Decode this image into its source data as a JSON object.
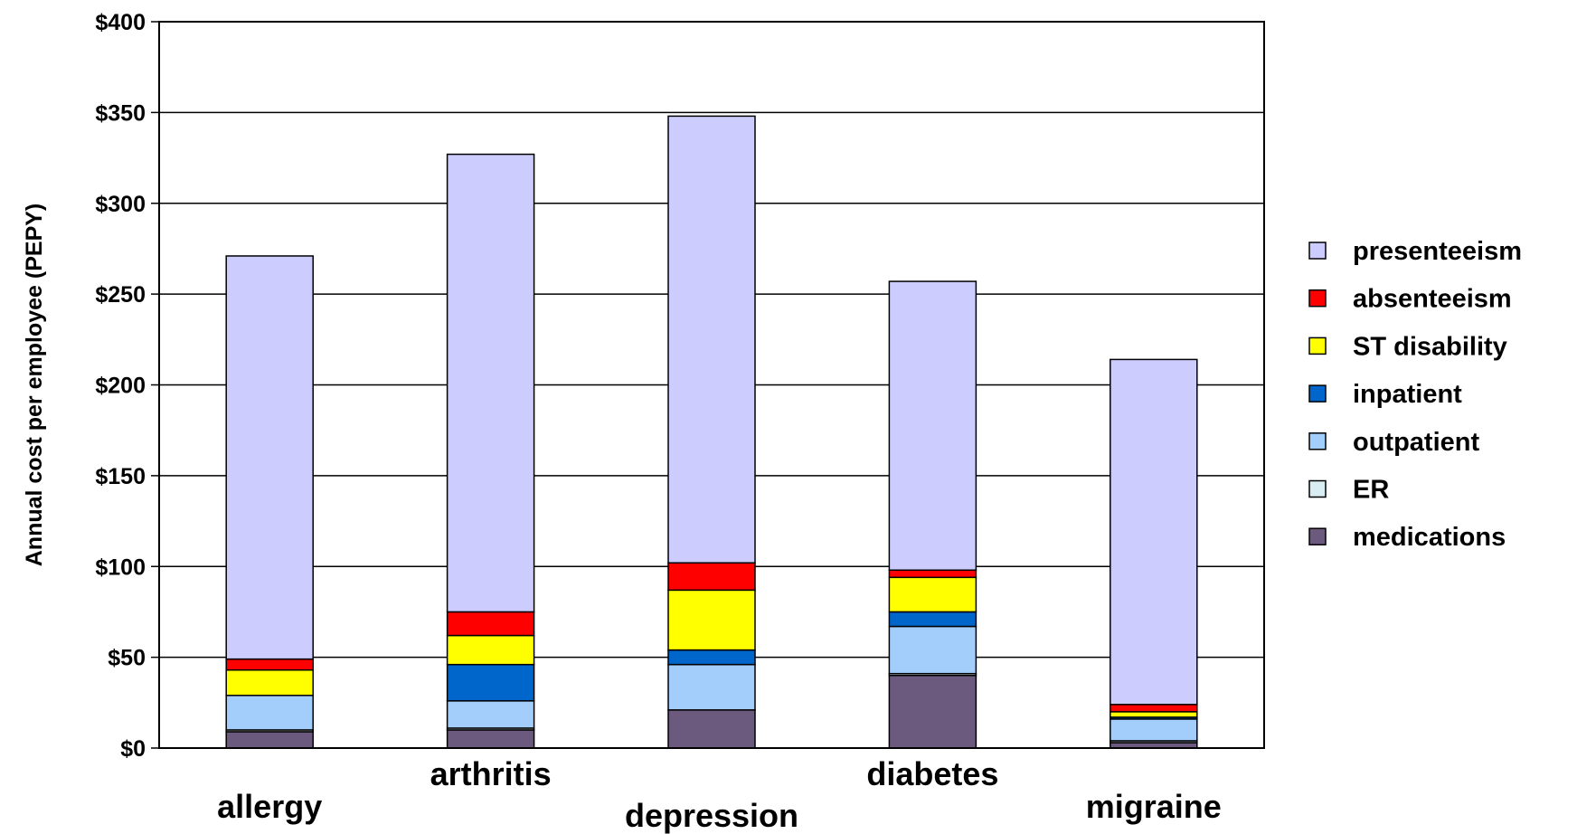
{
  "chart_data": {
    "type": "bar",
    "stacked": true,
    "title": "",
    "xlabel": "",
    "ylabel": "Annual cost per employee (PEPY)",
    "ylim": [
      0,
      400
    ],
    "y_ticks": [
      0,
      50,
      100,
      150,
      200,
      250,
      300,
      350,
      400
    ],
    "y_tick_labels": [
      "$0",
      "$50",
      "$100",
      "$150",
      "$200",
      "$250",
      "$300",
      "$350",
      "$400"
    ],
    "grid": true,
    "legend_position": "right",
    "categories": [
      "allergy",
      "arthritis",
      "depression",
      "diabetes",
      "migraine"
    ],
    "series": [
      {
        "name": "medications",
        "color": "#6b5a7e",
        "values": [
          9,
          10,
          21,
          40,
          3
        ]
      },
      {
        "name": "ER",
        "color": "#d9eef2",
        "values": [
          1,
          1,
          0,
          1,
          1
        ]
      },
      {
        "name": "outpatient",
        "color": "#a3cdfb",
        "values": [
          19,
          15,
          25,
          26,
          12
        ]
      },
      {
        "name": "inpatient",
        "color": "#0066cc",
        "values": [
          0,
          20,
          8,
          8,
          1
        ]
      },
      {
        "name": "ST disability",
        "color": "#ffff00",
        "values": [
          14,
          16,
          33,
          19,
          3
        ]
      },
      {
        "name": "absenteeism",
        "color": "#ff0000",
        "values": [
          6,
          13,
          15,
          4,
          4
        ]
      },
      {
        "name": "presenteeism",
        "color": "#ccccff",
        "values": [
          222,
          252,
          246,
          159,
          190
        ]
      }
    ]
  }
}
